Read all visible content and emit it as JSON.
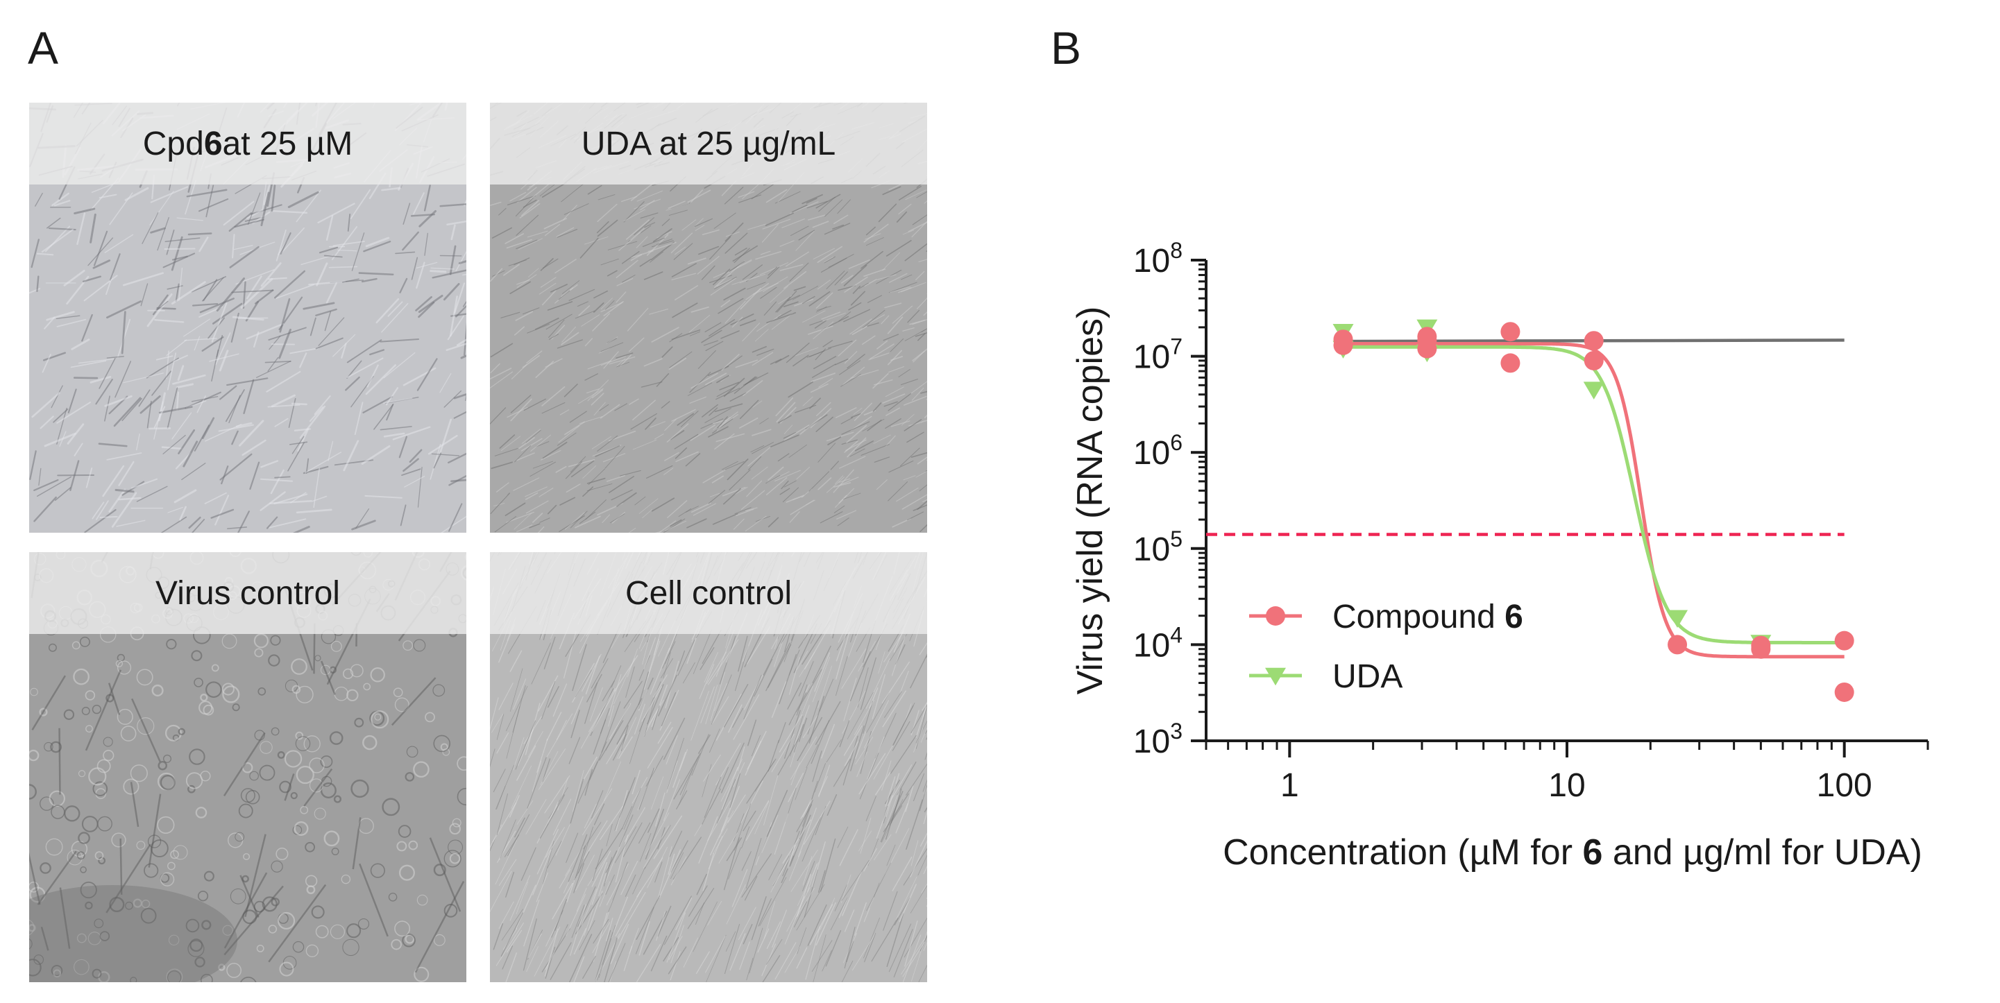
{
  "panels": {
    "a_label": "A",
    "b_label": "B"
  },
  "micrographs": [
    {
      "id": "cpd6",
      "caption_pre": "Cpd ",
      "caption_bold": "6",
      "caption_post": " at 25 µM",
      "tint": "#c4c5c9"
    },
    {
      "id": "uda",
      "caption_pre": "UDA at 25 µg/mL",
      "caption_bold": "",
      "caption_post": "",
      "tint": "#a9a9a9"
    },
    {
      "id": "virus",
      "caption_pre": "Virus control",
      "caption_bold": "",
      "caption_post": "",
      "tint": "#9f9f9f"
    },
    {
      "id": "cell",
      "caption_pre": "Cell control",
      "caption_bold": "",
      "caption_post": "",
      "tint": "#b9b9b9"
    }
  ],
  "chart_data": {
    "type": "scatter",
    "x_scale": "log",
    "y_scale": "log",
    "xlim": [
      0.5,
      200
    ],
    "ylim": [
      1000,
      100000000
    ],
    "x_ticks": [
      1,
      10,
      100
    ],
    "x_tick_labels": [
      "1",
      "10",
      "100"
    ],
    "y_ticks": [
      1000,
      10000,
      100000,
      1000000,
      10000000,
      100000000
    ],
    "y_tick_labels": [
      {
        "base": "10",
        "exp": "3"
      },
      {
        "base": "10",
        "exp": "4"
      },
      {
        "base": "10",
        "exp": "5"
      },
      {
        "base": "10",
        "exp": "6"
      },
      {
        "base": "10",
        "exp": "7"
      },
      {
        "base": "10",
        "exp": "8"
      }
    ],
    "xlabel_pre": "Concentration (µM for ",
    "xlabel_bold": "6",
    "xlabel_post": " and µg/ml for UDA)",
    "ylabel": "Virus yield (RNA copies)",
    "legend_position": "lower-left",
    "grid": false,
    "series": [
      {
        "name_pre": "Compound ",
        "name_bold": "6",
        "color": "#f0727a",
        "marker": "circle",
        "points": [
          [
            1.56,
            13000000
          ],
          [
            1.56,
            15000000
          ],
          [
            3.13,
            12000000
          ],
          [
            3.13,
            14500000
          ],
          [
            3.13,
            16000000
          ],
          [
            6.25,
            8500000
          ],
          [
            6.25,
            18000000
          ],
          [
            12.5,
            9000000
          ],
          [
            12.5,
            14500000
          ],
          [
            25,
            10000
          ],
          [
            50,
            9000
          ],
          [
            50,
            9800
          ],
          [
            100,
            3200
          ],
          [
            100,
            11000
          ]
        ],
        "fit": {
          "top": 13500000,
          "bottom": 7500,
          "ec50": 18.5,
          "hill": 10
        }
      },
      {
        "name_pre": "UDA",
        "name_bold": "",
        "color": "#9cdb74",
        "marker": "triangle-down",
        "points": [
          [
            1.56,
            12000000
          ],
          [
            1.56,
            18000000
          ],
          [
            3.13,
            11000000
          ],
          [
            3.13,
            20000000
          ],
          [
            12.5,
            4500000
          ],
          [
            25,
            19000
          ],
          [
            50,
            10500
          ]
        ],
        "fit": {
          "top": 12500000,
          "bottom": 10500,
          "ec50": 17.5,
          "hill": 7.5
        }
      }
    ],
    "reference_lines": [
      {
        "kind": "virus-control-level",
        "y_start": 14300000,
        "y_end": 14700000,
        "x_start": 1.56,
        "x_end": 100,
        "color": "#707070",
        "style": "solid"
      },
      {
        "kind": "detection-threshold",
        "y": 140000,
        "x_start": 0.5,
        "x_end": 100,
        "color": "#ee2452",
        "style": "dashed"
      }
    ]
  }
}
